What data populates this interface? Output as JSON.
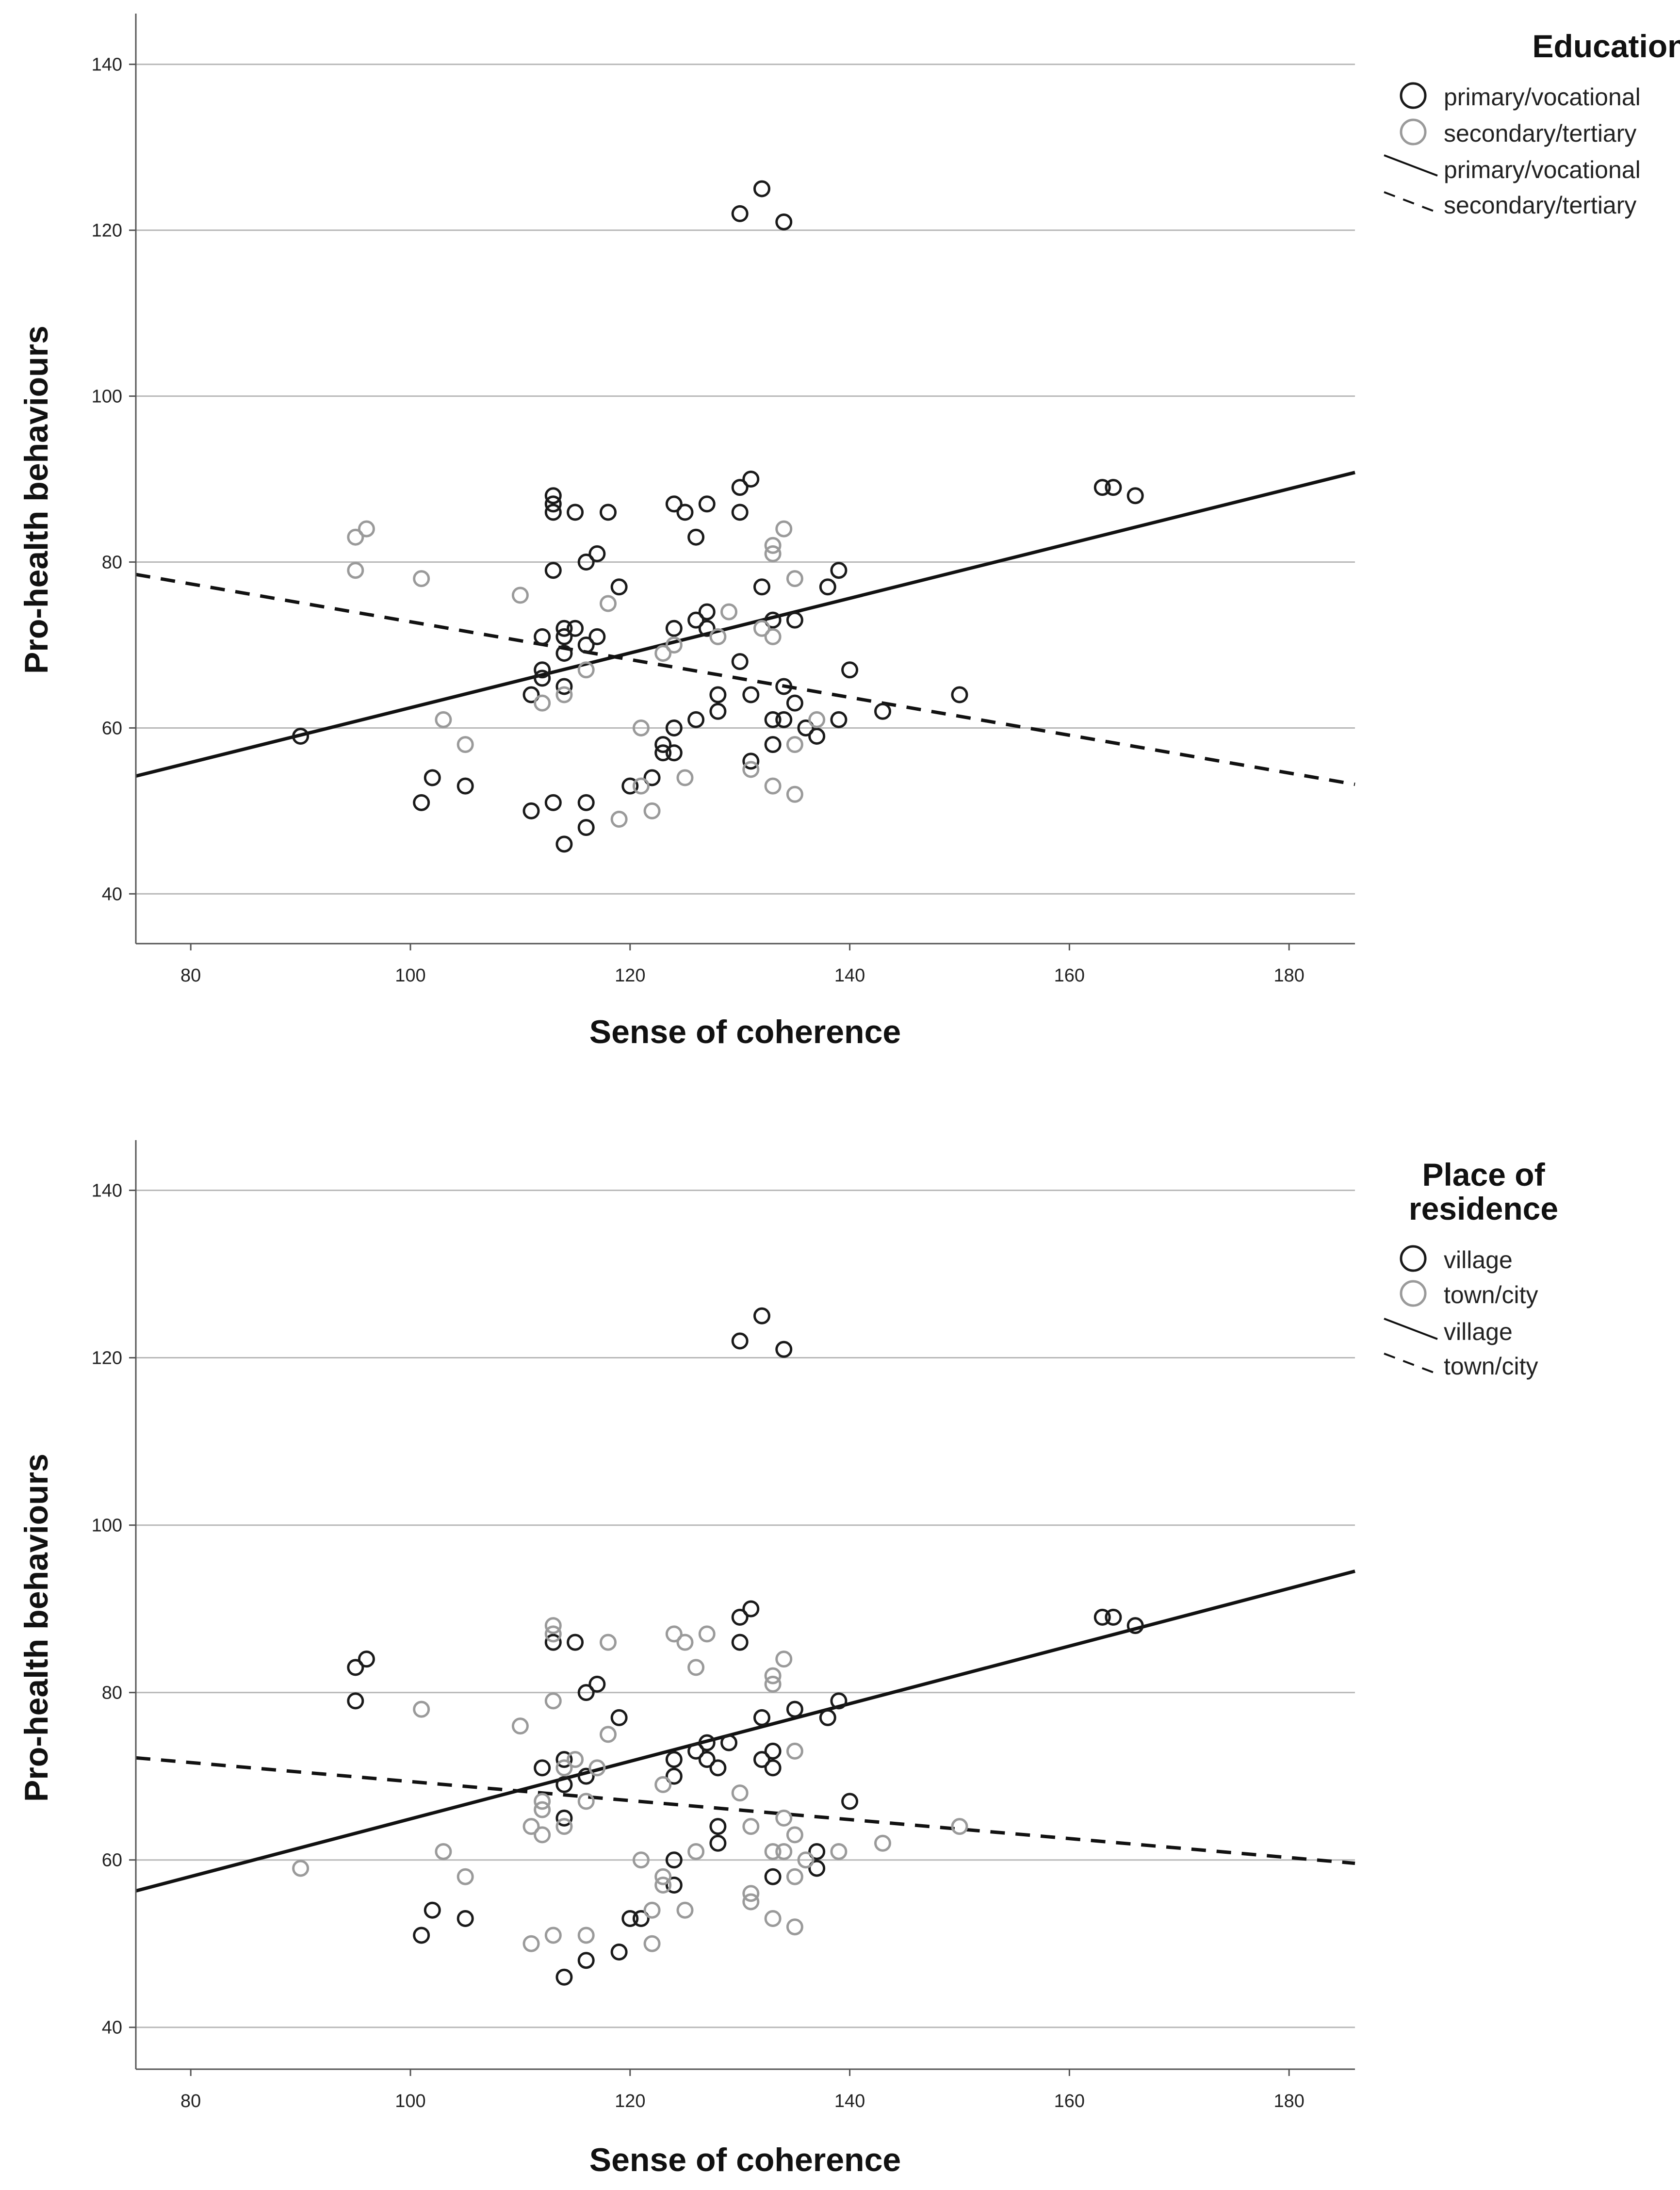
{
  "colors": {
    "group_a": "#1a1a1a",
    "group_b": "#9a9a9a",
    "gridline": "#b8b8b8",
    "axis": "#555555",
    "fit_line": "#111111"
  },
  "chart_data": [
    {
      "type": "scatter",
      "xlabel": "Sense of coherence",
      "ylabel": "Pro-health behaviours",
      "xlim": [
        75,
        186
      ],
      "ylim": [
        34,
        146
      ],
      "xticks": [
        80,
        100,
        120,
        140,
        160,
        180
      ],
      "yticks": [
        40,
        60,
        80,
        100,
        120,
        140
      ],
      "grid": "horizontal",
      "legend": {
        "title_lines": [
          "Education"
        ],
        "items": [
          {
            "kind": "marker",
            "series": 0,
            "label": "primary/vocational"
          },
          {
            "kind": "marker",
            "series": 1,
            "label": "secondary/tertiary"
          },
          {
            "kind": "line",
            "style": "solid",
            "label": "primary/vocational"
          },
          {
            "kind": "line",
            "style": "dashed",
            "label": "secondary/tertiary"
          }
        ]
      },
      "series": [
        {
          "name": "primary/vocational",
          "color": "#1a1a1a",
          "fit": {
            "style": "solid",
            "x": [
              75,
              186
            ],
            "y": [
              54.2,
              90.8
            ]
          },
          "points": [
            [
              90,
              59
            ],
            [
              101,
              51
            ],
            [
              102,
              54
            ],
            [
              105,
              53
            ],
            [
              111,
              50
            ],
            [
              111,
              64
            ],
            [
              112,
              71
            ],
            [
              112,
              67
            ],
            [
              112,
              66
            ],
            [
              113,
              88
            ],
            [
              113,
              87
            ],
            [
              113,
              86
            ],
            [
              113,
              79
            ],
            [
              113,
              51
            ],
            [
              114,
              72
            ],
            [
              114,
              71
            ],
            [
              114,
              69
            ],
            [
              114,
              65
            ],
            [
              114,
              46
            ],
            [
              115,
              86
            ],
            [
              115,
              72
            ],
            [
              116,
              80
            ],
            [
              116,
              70
            ],
            [
              116,
              51
            ],
            [
              116,
              48
            ],
            [
              117,
              81
            ],
            [
              117,
              71
            ],
            [
              118,
              86
            ],
            [
              119,
              77
            ],
            [
              120,
              53
            ],
            [
              122,
              54
            ],
            [
              123,
              58
            ],
            [
              123,
              57
            ],
            [
              124,
              87
            ],
            [
              124,
              72
            ],
            [
              124,
              60
            ],
            [
              124,
              57
            ],
            [
              125,
              86
            ],
            [
              126,
              83
            ],
            [
              126,
              73
            ],
            [
              126,
              61
            ],
            [
              127,
              87
            ],
            [
              127,
              74
            ],
            [
              127,
              72
            ],
            [
              128,
              64
            ],
            [
              128,
              62
            ],
            [
              130,
              89
            ],
            [
              130,
              86
            ],
            [
              130,
              68
            ],
            [
              131,
              90
            ],
            [
              131,
              64
            ],
            [
              131,
              56
            ],
            [
              132,
              77
            ],
            [
              133,
              73
            ],
            [
              133,
              61
            ],
            [
              133,
              58
            ],
            [
              134,
              65
            ],
            [
              134,
              61
            ],
            [
              135,
              73
            ],
            [
              135,
              63
            ],
            [
              136,
              60
            ],
            [
              137,
              59
            ],
            [
              138,
              77
            ],
            [
              139,
              79
            ],
            [
              139,
              61
            ],
            [
              140,
              67
            ],
            [
              143,
              62
            ],
            [
              150,
              64
            ],
            [
              163,
              89
            ],
            [
              164,
              89
            ],
            [
              166,
              88
            ],
            [
              130,
              122
            ],
            [
              132,
              125
            ],
            [
              134,
              121
            ]
          ]
        },
        {
          "name": "secondary/tertiary",
          "color": "#9a9a9a",
          "fit": {
            "style": "dashed",
            "x": [
              75,
              186
            ],
            "y": [
              78.5,
              53.2
            ]
          },
          "points": [
            [
              95,
              83
            ],
            [
              95,
              79
            ],
            [
              96,
              84
            ],
            [
              101,
              78
            ],
            [
              103,
              61
            ],
            [
              105,
              58
            ],
            [
              110,
              76
            ],
            [
              112,
              63
            ],
            [
              114,
              64
            ],
            [
              116,
              67
            ],
            [
              118,
              75
            ],
            [
              119,
              49
            ],
            [
              121,
              60
            ],
            [
              121,
              53
            ],
            [
              122,
              50
            ],
            [
              123,
              69
            ],
            [
              124,
              70
            ],
            [
              125,
              54
            ],
            [
              128,
              71
            ],
            [
              129,
              74
            ],
            [
              131,
              55
            ],
            [
              132,
              72
            ],
            [
              133,
              82
            ],
            [
              133,
              81
            ],
            [
              133,
              71
            ],
            [
              133,
              53
            ],
            [
              134,
              84
            ],
            [
              135,
              78
            ],
            [
              135,
              58
            ],
            [
              135,
              52
            ],
            [
              137,
              61
            ]
          ]
        }
      ]
    },
    {
      "type": "scatter",
      "xlabel": "Sense of coherence",
      "ylabel": "Pro-health behaviours",
      "xlim": [
        75,
        186
      ],
      "ylim": [
        35,
        146
      ],
      "xticks": [
        80,
        100,
        120,
        140,
        160,
        180
      ],
      "yticks": [
        40,
        60,
        80,
        100,
        120,
        140
      ],
      "grid": "horizontal",
      "legend": {
        "title_lines": [
          "Place of",
          "residence"
        ],
        "items": [
          {
            "kind": "marker",
            "series": 0,
            "label": "village"
          },
          {
            "kind": "marker",
            "series": 1,
            "label": "town/city"
          },
          {
            "kind": "line",
            "style": "solid",
            "label": "village"
          },
          {
            "kind": "line",
            "style": "dashed",
            "label": "town/city"
          }
        ]
      },
      "series": [
        {
          "name": "village",
          "color": "#1a1a1a",
          "fit": {
            "style": "solid",
            "x": [
              75,
              186
            ],
            "y": [
              56.3,
              94.5
            ]
          },
          "points": [
            [
              95,
              83
            ],
            [
              95,
              79
            ],
            [
              96,
              84
            ],
            [
              101,
              51
            ],
            [
              102,
              54
            ],
            [
              105,
              53
            ],
            [
              112,
              71
            ],
            [
              113,
              86
            ],
            [
              114,
              72
            ],
            [
              114,
              69
            ],
            [
              114,
              65
            ],
            [
              114,
              46
            ],
            [
              115,
              86
            ],
            [
              116,
              80
            ],
            [
              116,
              70
            ],
            [
              116,
              48
            ],
            [
              117,
              81
            ],
            [
              119,
              77
            ],
            [
              119,
              49
            ],
            [
              120,
              53
            ],
            [
              121,
              53
            ],
            [
              124,
              72
            ],
            [
              124,
              70
            ],
            [
              124,
              60
            ],
            [
              124,
              57
            ],
            [
              126,
              73
            ],
            [
              127,
              74
            ],
            [
              127,
              72
            ],
            [
              128,
              71
            ],
            [
              128,
              64
            ],
            [
              128,
              62
            ],
            [
              129,
              74
            ],
            [
              130,
              89
            ],
            [
              130,
              86
            ],
            [
              131,
              90
            ],
            [
              132,
              77
            ],
            [
              132,
              72
            ],
            [
              133,
              73
            ],
            [
              133,
              71
            ],
            [
              133,
              58
            ],
            [
              135,
              78
            ],
            [
              137,
              61
            ],
            [
              137,
              59
            ],
            [
              138,
              77
            ],
            [
              139,
              79
            ],
            [
              140,
              67
            ],
            [
              163,
              89
            ],
            [
              164,
              89
            ],
            [
              166,
              88
            ],
            [
              130,
              122
            ],
            [
              132,
              125
            ],
            [
              134,
              121
            ]
          ]
        },
        {
          "name": "town/city",
          "color": "#9a9a9a",
          "fit": {
            "style": "dashed",
            "x": [
              75,
              186
            ],
            "y": [
              72.2,
              59.6
            ]
          },
          "points": [
            [
              90,
              59
            ],
            [
              101,
              78
            ],
            [
              103,
              61
            ],
            [
              105,
              58
            ],
            [
              110,
              76
            ],
            [
              111,
              64
            ],
            [
              111,
              50
            ],
            [
              112,
              67
            ],
            [
              112,
              66
            ],
            [
              112,
              63
            ],
            [
              113,
              88
            ],
            [
              113,
              87
            ],
            [
              113,
              79
            ],
            [
              113,
              51
            ],
            [
              114,
              71
            ],
            [
              114,
              64
            ],
            [
              115,
              72
            ],
            [
              116,
              67
            ],
            [
              116,
              51
            ],
            [
              117,
              71
            ],
            [
              118,
              86
            ],
            [
              118,
              75
            ],
            [
              121,
              60
            ],
            [
              122,
              54
            ],
            [
              122,
              50
            ],
            [
              123,
              69
            ],
            [
              123,
              58
            ],
            [
              123,
              57
            ],
            [
              124,
              87
            ],
            [
              125,
              86
            ],
            [
              125,
              54
            ],
            [
              126,
              83
            ],
            [
              126,
              61
            ],
            [
              127,
              87
            ],
            [
              130,
              68
            ],
            [
              131,
              64
            ],
            [
              131,
              56
            ],
            [
              131,
              55
            ],
            [
              133,
              82
            ],
            [
              133,
              81
            ],
            [
              133,
              61
            ],
            [
              133,
              53
            ],
            [
              134,
              84
            ],
            [
              134,
              65
            ],
            [
              134,
              61
            ],
            [
              135,
              73
            ],
            [
              135,
              63
            ],
            [
              135,
              58
            ],
            [
              135,
              52
            ],
            [
              136,
              60
            ],
            [
              139,
              61
            ],
            [
              143,
              62
            ],
            [
              150,
              64
            ]
          ]
        }
      ]
    }
  ]
}
